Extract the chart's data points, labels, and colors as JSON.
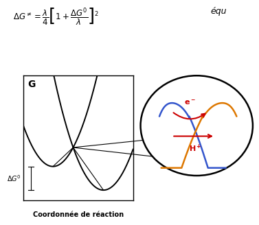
{
  "formula_text": "$\\Delta G^{\\neq} = \\dfrac{\\lambda}{4}\\left[1 + \\dfrac{\\Delta G^0}{\\lambda}\\right]^2$",
  "equ_text": "équ",
  "axis_label_G": "$\\mathbf{G}$",
  "xlabel": "Coordonnée de réaction",
  "delta_G0_label": "$\\Delta G^0$",
  "circle_blue_color": "#3355cc",
  "circle_orange_color": "#dd7700",
  "circle_red_color": "#cc0000",
  "bg_color": "#ffffff"
}
